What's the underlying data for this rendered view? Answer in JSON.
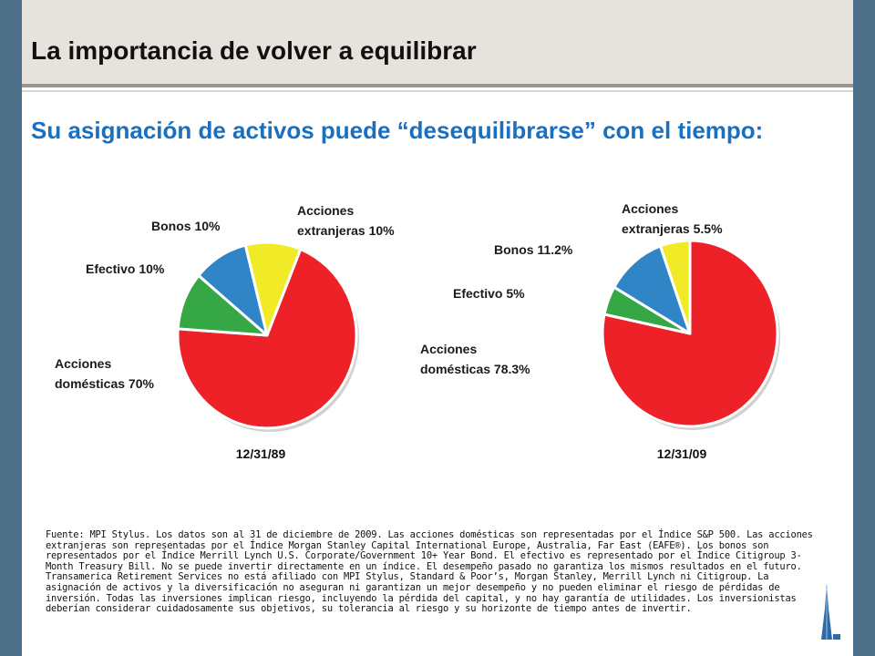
{
  "title": "La importancia de volver a equilibrar",
  "subtitle": "Su asignación de activos puede “desequilibrarse” con el tiempo:",
  "colors": {
    "domestic": "#ee2028",
    "cash": "#35a745",
    "bonds": "#2f85c5",
    "foreign": "#f1ea26",
    "title_blue": "#1a6fbf"
  },
  "chart_data": [
    {
      "type": "pie",
      "title": "12/31/89",
      "slices": [
        {
          "label_lines": [
            "Acciones",
            "domésticas 70%"
          ],
          "value": 70,
          "color": "#ee2028"
        },
        {
          "label_lines": [
            "Efectivo 10%"
          ],
          "value": 10,
          "color": "#35a745"
        },
        {
          "label_lines": [
            "Bonos 10%"
          ],
          "value": 10,
          "color": "#2f85c5"
        },
        {
          "label_lines": [
            "Acciones",
            "extranjeras 10%"
          ],
          "value": 10,
          "color": "#f1ea26"
        }
      ]
    },
    {
      "type": "pie",
      "title": "12/31/09",
      "slices": [
        {
          "label_lines": [
            "Acciones",
            "domésticas 78.3%"
          ],
          "value": 78.3,
          "color": "#ee2028"
        },
        {
          "label_lines": [
            "Efectivo 5%"
          ],
          "value": 5,
          "color": "#35a745"
        },
        {
          "label_lines": [
            "Bonos 11.2%"
          ],
          "value": 11.2,
          "color": "#2f85c5"
        },
        {
          "label_lines": [
            "Acciones",
            "extranjeras 5.5%"
          ],
          "value": 5.5,
          "color": "#f1ea26"
        }
      ]
    }
  ],
  "source_text": "Fuente: MPI Stylus. Los datos son al 31 de diciembre de 2009. Las acciones domésticas son representadas por el Índice S&P 500.  Las acciones extranjeras son representadas por el Índice Morgan Stanley Capital International Europe, Australia, Far East (EAFE®). Los bonos son representados por el Índice Merrill Lynch U.S. Corporate/Government 10+ Year Bond. El efectivo es representado por el Índice Citigroup 3-Month Treasury Bill. No se puede invertir directamente en un índice.  El desempeño pasado no garantiza los mismos resultados en el futuro. Transamerica Retirement Services no está afiliado con MPI Stylus, Standard & Poor’s, Morgan Stanley, Merrill Lynch ni Citigroup.  La asignación de activos y la diversificación no aseguran ni garantizan un mejor desempeño y no pueden eliminar el riesgo de pérdidas de inversión. Todas las inversiones implican riesgo, incluyendo la pérdida del capital, y no hay garantía de utilidades.  Los inversionistas deberían considerar cuidadosamente sus objetivos, su tolerancia al riesgo y su horizonte de tiempo antes de invertir.",
  "logo_icon": "pyramid-building-icon"
}
